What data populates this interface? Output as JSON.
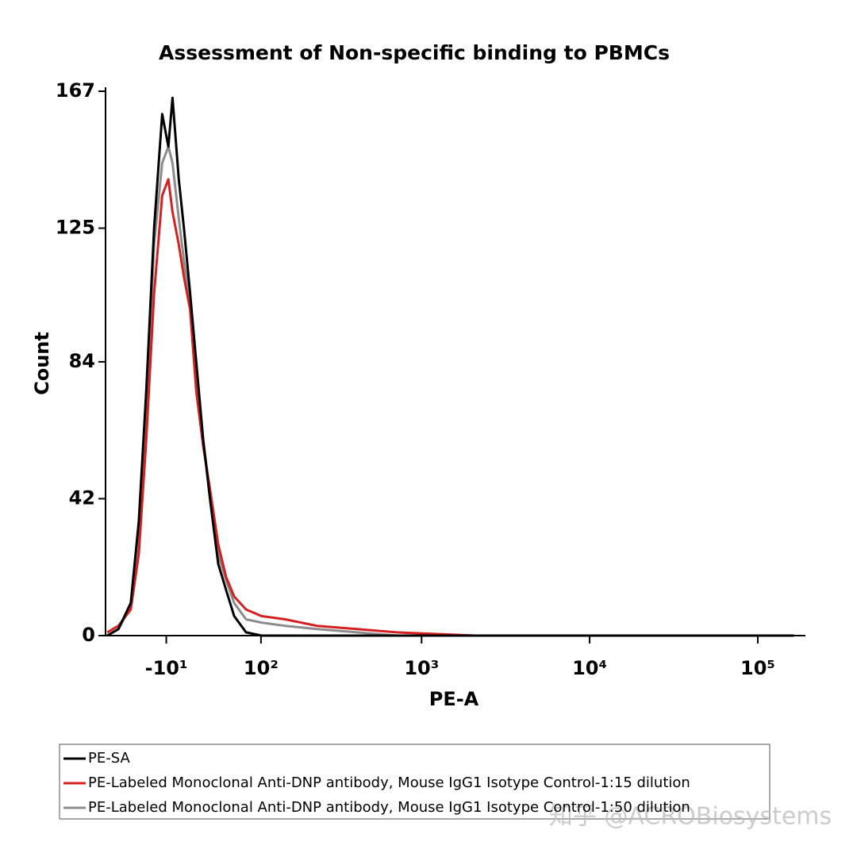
{
  "chart_data": {
    "type": "line",
    "title": "Assessment of Non-specific binding to PBMCs",
    "x_label": "PE-A",
    "y_label": "Count",
    "x": [
      -77,
      -62,
      -47,
      -38,
      -30,
      -22,
      -14,
      -8,
      -4,
      2,
      7,
      13,
      19,
      26,
      33,
      42,
      51,
      61,
      77,
      101,
      147,
      234,
      410,
      709,
      2100,
      18500,
      164000
    ],
    "series": [
      {
        "name": "PE-SA",
        "color": "#000000",
        "values": [
          0,
          2,
          10,
          35,
          75,
          125,
          160,
          150,
          165,
          140,
          125,
          105,
          84,
          60,
          42,
          22,
          14,
          6,
          1,
          0,
          0,
          0,
          0,
          0,
          0,
          0,
          0
        ]
      },
      {
        "name": "PE-Labeled Monoclonal Anti-DNP antibody, Mouse IgG1 Isotype Control-1:15 dilution",
        "color": "#d42020",
        "values": [
          1,
          3,
          8,
          25,
          60,
          105,
          135,
          140,
          130,
          120,
          110,
          100,
          75,
          58,
          45,
          28,
          18,
          12,
          8,
          6,
          5,
          3,
          2,
          1,
          0,
          0,
          0
        ]
      },
      {
        "name": "PE-Labeled Monoclonal Anti-DNP antibody, Mouse IgG1 Isotype Control-1:50 dilution",
        "color": "#8c8c8c",
        "values": [
          0,
          2,
          9,
          30,
          70,
          120,
          145,
          150,
          145,
          128,
          115,
          102,
          78,
          60,
          44,
          25,
          17,
          10,
          5,
          4,
          3,
          2,
          1,
          0,
          0,
          0,
          0
        ]
      }
    ],
    "xlim": [
      -83,
      192000
    ],
    "xticks": [
      {
        "value": -10,
        "label": "-10¹"
      },
      {
        "value": 100,
        "label": "10²"
      },
      {
        "value": 1000,
        "label": "10³"
      },
      {
        "value": 10000,
        "label": "10⁴"
      },
      {
        "value": 100000,
        "label": "10⁵"
      }
    ],
    "xscale": "biexponential",
    "ylim": [
      0,
      167
    ],
    "yticks": [
      0,
      42,
      84,
      125,
      167
    ],
    "grid": false,
    "watermark": "知乎 @ACROBiosystems"
  }
}
